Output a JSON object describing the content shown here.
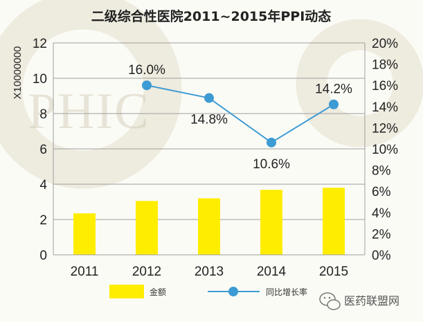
{
  "chart_data": {
    "type": "bar",
    "title": "二级综合性医院2011~2015年PPI动态",
    "categories": [
      "2011",
      "2012",
      "2013",
      "2014",
      "2015"
    ],
    "series": [
      {
        "name": "金额",
        "type": "bar",
        "axis": "left",
        "values": [
          2.35,
          3.05,
          3.2,
          3.68,
          3.8
        ],
        "color": "#ffed00"
      },
      {
        "name": "同比增长率",
        "type": "line",
        "axis": "right",
        "values": [
          null,
          16.0,
          14.8,
          10.6,
          14.2
        ],
        "data_labels": [
          "",
          "16.0%",
          "14.8%",
          "10.6%",
          "14.2%"
        ],
        "color": "#3d9bd4"
      }
    ],
    "ylabel": "X10000000",
    "y_left": {
      "min": 0,
      "max": 12,
      "ticks": [
        "0",
        "2",
        "4",
        "6",
        "8",
        "10",
        "12"
      ]
    },
    "y_right": {
      "min": 0,
      "max": 20,
      "ticks": [
        "0%",
        "2%",
        "4%",
        "6%",
        "8%",
        "10%",
        "12%",
        "14%",
        "16%",
        "18%",
        "20%"
      ]
    },
    "grid": true,
    "legend_position": "bottom"
  },
  "watermark": {
    "text": "PHIC"
  },
  "brand": {
    "text": "医药联盟网",
    "icon": "wechat-icon"
  },
  "colors": {
    "background": "#fbfbf6",
    "grid": "#9e9e9e",
    "bar": "#ffed00",
    "line": "#3d9bd4"
  }
}
